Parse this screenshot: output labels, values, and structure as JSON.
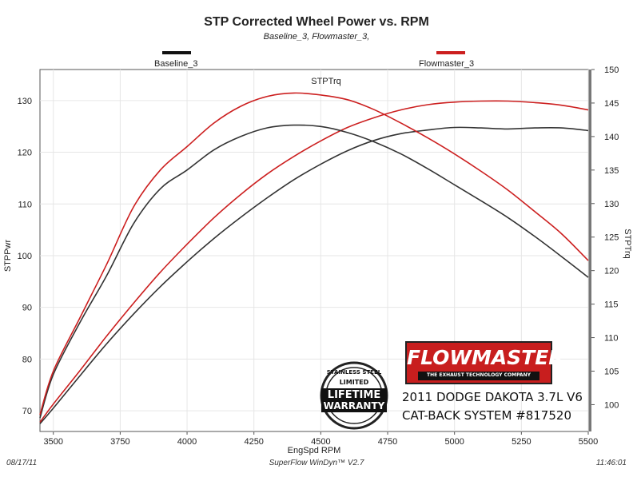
{
  "chart_data": {
    "type": "line",
    "title": "STP Corrected Wheel Power vs. RPM",
    "subtitle": "Baseline_3, Flowmaster_3,",
    "xlabel": "EngSpd  RPM",
    "ylabel_left": "STPPwr",
    "ylabel_right": "STPTrq",
    "curve_label": "STPTrq",
    "xlim": [
      3450,
      5500
    ],
    "ylim_left": [
      66,
      136
    ],
    "ylim_right": [
      96,
      150
    ],
    "x_ticks": [
      3500,
      3750,
      4000,
      4250,
      4500,
      4750,
      5000,
      5250,
      5500
    ],
    "y_ticks_left": [
      70,
      80,
      90,
      100,
      110,
      120,
      130
    ],
    "y_ticks_right": [
      100,
      105,
      110,
      115,
      120,
      125,
      130,
      135,
      140,
      145,
      150
    ],
    "grid": true,
    "legend": [
      {
        "name": "Baseline_3",
        "color": "#111111"
      },
      {
        "name": "Flowmaster_3",
        "color": "#cc1f1f"
      }
    ],
    "series": [
      {
        "name": "Baseline_3",
        "measure": "STPPwr",
        "axis": "left",
        "color": "#333333",
        "x": [
          3450,
          3500,
          3600,
          3700,
          3800,
          3900,
          4000,
          4100,
          4200,
          4300,
          4400,
          4500,
          4600,
          4700,
          4800,
          4900,
          5000,
          5100,
          5200,
          5300,
          5400,
          5500
        ],
        "y": [
          67.5,
          70.5,
          76.8,
          83.0,
          88.7,
          94.0,
          98.8,
          103.3,
          107.4,
          111.2,
          114.7,
          117.7,
          120.3,
          122.3,
          123.6,
          124.3,
          124.8,
          124.7,
          124.5,
          124.7,
          124.7,
          124.2
        ]
      },
      {
        "name": "Flowmaster_3",
        "measure": "STPPwr",
        "axis": "left",
        "color": "#cc1f1f",
        "x": [
          3450,
          3500,
          3600,
          3700,
          3800,
          3900,
          4000,
          4100,
          4200,
          4300,
          4400,
          4500,
          4600,
          4700,
          4800,
          4900,
          5000,
          5100,
          5200,
          5300,
          5400,
          5500
        ],
        "y": [
          67.8,
          71.3,
          77.8,
          84.5,
          90.8,
          96.8,
          102.2,
          107.3,
          111.8,
          115.8,
          119.2,
          122.2,
          124.8,
          126.7,
          128.2,
          129.2,
          129.7,
          129.9,
          129.9,
          129.6,
          129.1,
          128.2
        ]
      },
      {
        "name": "Baseline_3",
        "measure": "STPTrq",
        "axis": "right",
        "color": "#333333",
        "x": [
          3450,
          3500,
          3600,
          3700,
          3800,
          3900,
          4000,
          4100,
          4200,
          4300,
          4400,
          4500,
          4600,
          4700,
          4800,
          4900,
          5000,
          5100,
          5200,
          5300,
          5400,
          5500
        ],
        "y": [
          98.0,
          104.5,
          112.3,
          119.3,
          127.0,
          132.2,
          135.0,
          138.0,
          140.0,
          141.3,
          141.7,
          141.5,
          140.6,
          139.2,
          137.4,
          135.2,
          132.8,
          130.4,
          127.9,
          125.1,
          122.1,
          119.0
        ]
      },
      {
        "name": "Flowmaster_3",
        "measure": "STPTrq",
        "axis": "right",
        "color": "#cc1f1f",
        "x": [
          3450,
          3500,
          3600,
          3700,
          3800,
          3900,
          4000,
          4100,
          4200,
          4300,
          4400,
          4500,
          4600,
          4700,
          4800,
          4900,
          5000,
          5100,
          5200,
          5300,
          5400,
          5500
        ],
        "y": [
          98.5,
          105.0,
          113.0,
          121.0,
          129.5,
          135.0,
          138.5,
          142.0,
          144.5,
          146.0,
          146.5,
          146.2,
          145.5,
          144.0,
          142.0,
          139.8,
          137.4,
          134.8,
          132.0,
          128.8,
          125.5,
          121.5
        ]
      }
    ]
  },
  "footer": {
    "date": "08/17/11",
    "software": "SuperFlow WinDyn™ V2.7",
    "time": "11:46:01"
  },
  "badge": {
    "brand": "FLOWMASTER",
    "tagline": "THE EXHAUST TECHNOLOGY COMPANY",
    "seal_top": "STAINLESS STEEL",
    "seal_limited": "LIMITED",
    "seal_line1": "LIFETIME",
    "seal_line2": "WARRANTY",
    "caption_line1": "2011 DODGE DAKOTA 3.7L V6",
    "caption_line2": "CAT-BACK SYSTEM #817520"
  }
}
